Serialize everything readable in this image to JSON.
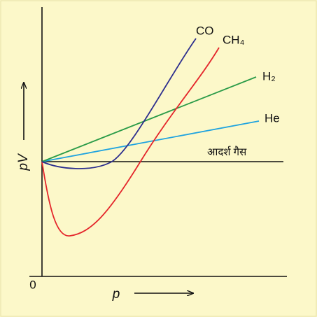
{
  "axes": {
    "y_label": "pV",
    "x_label": "p",
    "origin": "0"
  },
  "curves": [
    {
      "label": "CO"
    },
    {
      "label": "CH₄"
    },
    {
      "label": "H₂"
    },
    {
      "label": "He"
    },
    {
      "label": "आदर्श गैस"
    }
  ]
}
